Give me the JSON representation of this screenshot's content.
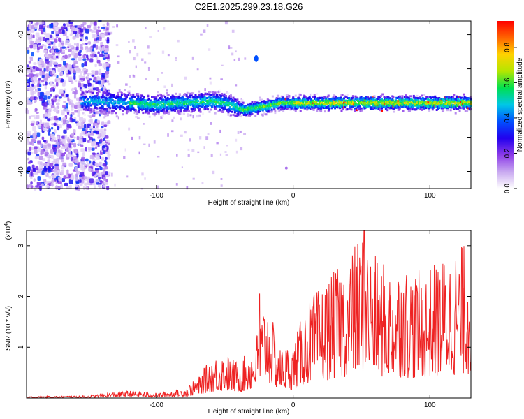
{
  "figure_title": "C2E1.2025.299.23.18.G26",
  "chart_data": [
    {
      "type": "heatmap",
      "title": "C2E1.2025.299.23.18.G26",
      "xlabel": "Height of straight line (km)",
      "ylabel": "Frequency (Hz)",
      "xlim": [
        -195,
        130
      ],
      "ylim": [
        -50,
        48
      ],
      "xticks": [
        -100,
        0,
        100
      ],
      "yticks": [
        -40,
        -20,
        0,
        20,
        40
      ],
      "colorbar": {
        "label": "Normalized spectral amplitude",
        "range": [
          0,
          0.95
        ],
        "ticks": [
          0.0,
          0.2,
          0.4,
          0.6,
          0.8
        ],
        "colormap": [
          "#ffffff",
          "#c8a8f0",
          "#8c3ce8",
          "#2200ee",
          "#0050ff",
          "#00c8e6",
          "#00e050",
          "#b4e600",
          "#ffd200",
          "#ff6400",
          "#ff0000"
        ]
      },
      "signal_band": {
        "description_points_km": [
          -150,
          -120,
          -100,
          -80,
          -60,
          -50,
          -40,
          -35,
          -30,
          -20,
          -10,
          0,
          20,
          50,
          80,
          100,
          130
        ],
        "center_freq_hz": [
          1,
          0,
          -1,
          0,
          1,
          0,
          -3,
          -4,
          -3,
          -2,
          0,
          0,
          0,
          0,
          0,
          0,
          0
        ],
        "noise_region_km": [
          -195,
          -135
        ]
      }
    },
    {
      "type": "line",
      "xlabel": "Height of straight line (km)",
      "ylabel": "SNR (10 * v/v)",
      "yscale_label": "(x10^4)",
      "xlim": [
        -195,
        130
      ],
      "ylim": [
        0,
        3.3
      ],
      "xticks": [
        -100,
        0,
        100
      ],
      "yticks": [
        1,
        2,
        3
      ],
      "series": [
        {
          "name": "SNR",
          "color": "#ee2222",
          "envelope_x": [
            -195,
            -150,
            -130,
            -120,
            -100,
            -80,
            -70,
            -60,
            -50,
            -40,
            -30,
            -20,
            -10,
            0,
            10,
            20,
            30,
            40,
            50,
            60,
            70,
            80,
            90,
            100,
            110,
            120,
            130
          ],
          "envelope_max": [
            0.03,
            0.05,
            0.12,
            0.15,
            0.1,
            0.18,
            0.4,
            0.8,
            0.9,
            0.7,
            1.0,
            2.05,
            1.0,
            1.1,
            1.9,
            2.2,
            2.5,
            2.8,
            3.3,
            2.8,
            2.6,
            2.7,
            2.5,
            2.6,
            2.8,
            3.0,
            3.1
          ],
          "peak": {
            "x": 52,
            "y": 3.3
          }
        }
      ]
    }
  ]
}
